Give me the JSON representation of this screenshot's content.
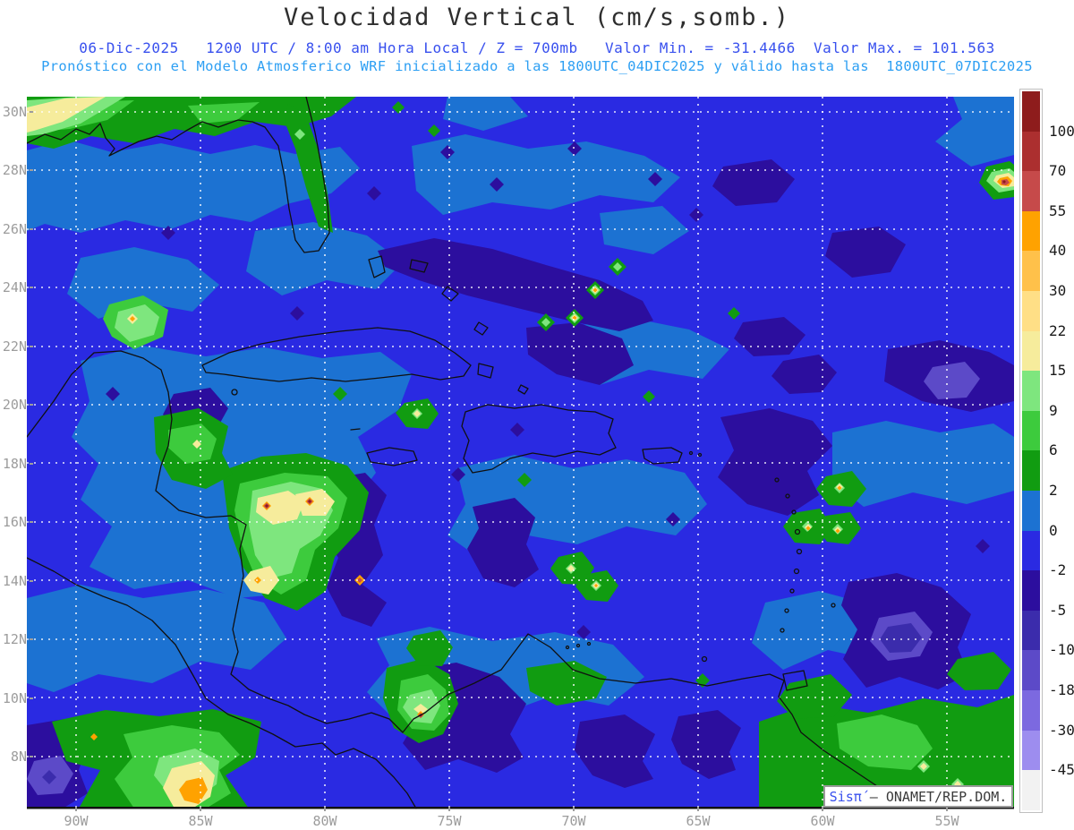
{
  "header": {
    "title": "Velocidad Vertical (cm/s,somb.)",
    "line1": "06-Dic-2025   1200 UTC / 8:00 am Hora Local / Z = 700mb   Valor Min. = -31.4466  Valor Max. = 101.563",
    "line2": "Pronóstico con el Modelo Atmosferico WRF inicializado a las 1800UTC_04DIC2025 y válido hasta las  1800UTC_07DIC2025"
  },
  "stats": {
    "valor_min": "-31.4466",
    "valor_max": "101.563",
    "level": "700mb",
    "valid_date": "06-Dic-2025",
    "valid_time_utc": "1200 UTC",
    "valid_time_local": "8:00 am Hora Local",
    "init": "1800UTC_04DIC2025",
    "end": "1800UTC_07DIC2025"
  },
  "axes": {
    "lat_labels": [
      "30N",
      "28N",
      "26N",
      "24N",
      "22N",
      "20N",
      "18N",
      "16N",
      "14N",
      "12N",
      "10N",
      "8N"
    ],
    "lon_labels": [
      "90W",
      "85W",
      "80W",
      "75W",
      "70W",
      "65W",
      "60W",
      "55W"
    ]
  },
  "palette": {
    "p100": "#8E1C1C",
    "p70": "#AC2F2F",
    "p55": "#C64A4A",
    "p40": "#FFA200",
    "p30": "#FFC14A",
    "p22": "#FFDF86",
    "p15": "#F6EC9C",
    "p9": "#7EE67E",
    "p6": "#3DCB3D",
    "p2": "#119C11",
    "p0": "#1C72D2",
    "m2": "#2A2AE2",
    "m5": "#2C0E9E",
    "m10": "#3B2CAC",
    "m18": "#5C4AC8",
    "m30": "#7C69E0",
    "m45": "#9D8DEF",
    "mlow": "#F2F2F2"
  },
  "colorbar": {
    "order": [
      "p100",
      "p70",
      "p55",
      "p40",
      "p30",
      "p22",
      "p15",
      "p9",
      "p6",
      "p2",
      "p0",
      "m2",
      "m5",
      "m10",
      "m18",
      "m30",
      "m45",
      "mlow"
    ],
    "labels": [
      "100",
      "70",
      "55",
      "40",
      "30",
      "22",
      "15",
      "9",
      "6",
      "2",
      "0",
      "-2",
      "-5",
      "-10",
      "-18",
      "-30",
      "-45"
    ]
  },
  "attribution": {
    "brand": "Sisπ́",
    "org": " – ONAMET/REP.DOM."
  }
}
